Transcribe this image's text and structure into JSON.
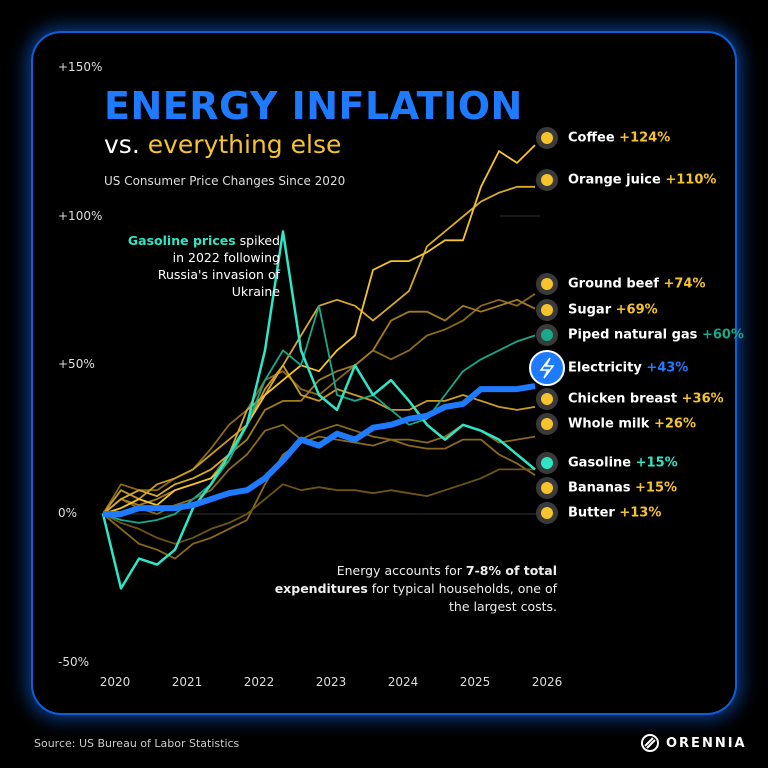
{
  "header": {
    "title": "ENERGY INFLATION",
    "subtitle_vs": "vs.",
    "subtitle_rest": "everything else",
    "caption": "US Consumer Price Changes Since 2020"
  },
  "annotation": {
    "highlight": "Gasoline prices",
    "text": "spiked in 2022 following Russia's invasion of Ukraine"
  },
  "note": {
    "pre": "Energy accounts for ",
    "bold1": "7-8% of total expenditures",
    "post": " for typical households, one of the largest costs."
  },
  "footer": {
    "source": "Source: US Bureau of Labor Statistics",
    "brand": "ORENNIA"
  },
  "colors": {
    "background": "#000000",
    "energy": "#1e7bff",
    "gasoline": "#2ee6c5",
    "natural_gas": "#1aa88a",
    "food_bright": "#f5c32c",
    "food_dim": "#8a6a1a"
  },
  "chart_data": {
    "type": "line",
    "title": "ENERGY INFLATION vs. everything else",
    "subtitle": "US Consumer Price Changes Since 2020",
    "xlabel": "",
    "ylabel": "",
    "xlim": [
      2020,
      2026
    ],
    "ylim": [
      -50,
      150
    ],
    "x_ticks": [
      "2020",
      "2021",
      "2022",
      "2023",
      "2024",
      "2025",
      "2026"
    ],
    "y_ticks": [
      "+150%",
      "+100%",
      "+50%",
      "0%",
      "-50%"
    ],
    "x": [
      2020,
      2020.25,
      2020.5,
      2020.75,
      2021,
      2021.25,
      2021.5,
      2021.75,
      2022,
      2022.25,
      2022.5,
      2022.75,
      2023,
      2023.25,
      2023.5,
      2023.75,
      2024,
      2024.25,
      2024.5,
      2024.75,
      2025,
      2025.25,
      2025.5,
      2025.75,
      2026
    ],
    "series": [
      {
        "name": "Butter",
        "end": "+13%",
        "color": "#8a6a1a",
        "icon": "butter-icon",
        "values": [
          0,
          -5,
          -10,
          -12,
          -15,
          -10,
          -8,
          -5,
          -2,
          10,
          20,
          24,
          26,
          25,
          24,
          23,
          25,
          23,
          22,
          22,
          25,
          25,
          20,
          17,
          13
        ]
      },
      {
        "name": "Bananas",
        "end": "+15%",
        "color": "#6e5514",
        "icon": "banana-icon",
        "values": [
          0,
          -3,
          -5,
          -8,
          -10,
          -8,
          -5,
          -3,
          0,
          5,
          10,
          8,
          9,
          8,
          8,
          7,
          8,
          7,
          6,
          8,
          10,
          12,
          15,
          15,
          15
        ]
      },
      {
        "name": "Whole milk",
        "end": "+26%",
        "color": "#8a6a1a",
        "icon": "milk-icon",
        "values": [
          0,
          5,
          2,
          0,
          3,
          5,
          8,
          15,
          20,
          28,
          30,
          25,
          28,
          30,
          28,
          26,
          25,
          25,
          24,
          26,
          30,
          28,
          24,
          25,
          26
        ]
      },
      {
        "name": "Ground beef",
        "end": "+74%",
        "color": "#8a6a1a",
        "icon": "cow-icon",
        "values": [
          0,
          10,
          8,
          8,
          12,
          15,
          22,
          30,
          35,
          45,
          48,
          42,
          40,
          45,
          50,
          55,
          52,
          55,
          60,
          62,
          65,
          70,
          72,
          70,
          74
        ]
      },
      {
        "name": "Sugar",
        "end": "+69%",
        "color": "#a37c1c",
        "icon": "sugar-icon",
        "values": [
          0,
          5,
          3,
          5,
          8,
          10,
          12,
          20,
          25,
          35,
          38,
          38,
          45,
          48,
          50,
          55,
          65,
          68,
          68,
          65,
          70,
          68,
          70,
          72,
          69
        ]
      },
      {
        "name": "Chicken breast",
        "end": "+36%",
        "color": "#c99b22",
        "icon": "chicken-icon",
        "values": [
          0,
          8,
          5,
          10,
          12,
          15,
          20,
          25,
          30,
          42,
          50,
          40,
          38,
          42,
          40,
          38,
          35,
          35,
          38,
          38,
          40,
          38,
          36,
          35,
          36
        ]
      },
      {
        "name": "Orange juice",
        "end": "+110%",
        "color": "#d9aa28",
        "icon": "orange-icon",
        "values": [
          0,
          5,
          8,
          6,
          10,
          12,
          15,
          20,
          35,
          40,
          50,
          60,
          70,
          72,
          70,
          65,
          70,
          75,
          90,
          95,
          100,
          105,
          108,
          110,
          110
        ]
      },
      {
        "name": "Coffee",
        "end": "+124%",
        "color": "#f5c32c",
        "icon": "coffee-icon",
        "values": [
          0,
          2,
          5,
          3,
          8,
          10,
          12,
          18,
          30,
          40,
          45,
          50,
          48,
          55,
          60,
          82,
          85,
          85,
          88,
          92,
          92,
          110,
          122,
          118,
          124
        ]
      },
      {
        "name": "Piped natural gas",
        "end": "+60%",
        "color": "#1aa88a",
        "icon": "flame-icon",
        "values": [
          0,
          -2,
          -3,
          -2,
          0,
          5,
          10,
          18,
          30,
          45,
          55,
          50,
          70,
          40,
          38,
          40,
          35,
          30,
          32,
          40,
          48,
          52,
          55,
          58,
          60
        ]
      },
      {
        "name": "Gasoline",
        "end": "+15%",
        "color": "#2ee6c5",
        "icon": "fuel-pump-icon",
        "values": [
          0,
          -25,
          -15,
          -17,
          -12,
          2,
          10,
          20,
          30,
          55,
          95,
          55,
          40,
          35,
          50,
          40,
          45,
          38,
          30,
          25,
          30,
          28,
          25,
          20,
          15
        ]
      },
      {
        "name": "Electricity",
        "end": "+43%",
        "color": "#1e7bff",
        "icon": "lightning-icon",
        "values": [
          0,
          0,
          2,
          2,
          2,
          3,
          5,
          7,
          8,
          12,
          18,
          25,
          23,
          27,
          25,
          29,
          30,
          32,
          33,
          36,
          37,
          42,
          42,
          42,
          43
        ]
      }
    ],
    "labels": [
      {
        "name": "Coffee",
        "end": "+124%",
        "endColor": "#f5c32c"
      },
      {
        "name": "Orange juice",
        "end": "+110%",
        "endColor": "#f5c32c"
      },
      {
        "name": "Ground beef",
        "end": "+74%",
        "endColor": "#f5c32c"
      },
      {
        "name": "Sugar",
        "end": "+69%",
        "endColor": "#f5c32c"
      },
      {
        "name": "Piped natural gas",
        "end": "+60%",
        "endColor": "#1aa88a"
      },
      {
        "name": "Electricity",
        "end": "+43%",
        "endColor": "#1e7bff"
      },
      {
        "name": "Chicken breast",
        "end": "+36%",
        "endColor": "#f5c32c"
      },
      {
        "name": "Whole milk",
        "end": "+26%",
        "endColor": "#f5c32c"
      },
      {
        "name": "Gasoline",
        "end": "+15%",
        "endColor": "#2ee6c5"
      },
      {
        "name": "Bananas",
        "end": "+15%",
        "endColor": "#f5c32c"
      },
      {
        "name": "Butter",
        "end": "+13%",
        "endColor": "#f5c32c"
      }
    ],
    "grid": "zero-line only",
    "legend": "right (end labels)"
  }
}
